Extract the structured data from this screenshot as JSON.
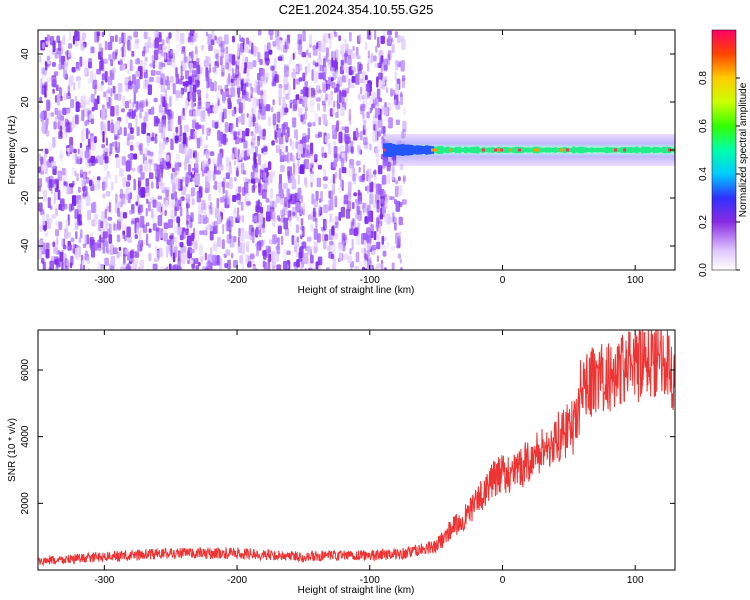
{
  "title": "C2E1.2024.354.10.55.G25",
  "chart_data": [
    {
      "type": "heatmap",
      "xlabel": "Height of straight line (km)",
      "ylabel": "Frequency (Hz)",
      "xlim": [
        -350,
        130
      ],
      "ylim": [
        -50,
        50
      ],
      "xticks": [
        -300,
        -200,
        -100,
        0,
        100
      ],
      "yticks": [
        -40,
        -20,
        0,
        20,
        40
      ],
      "colorbar": {
        "label": "Normalized spectral amplitude",
        "range": [
          0,
          1
        ],
        "ticks": [
          "0.0",
          "0.2",
          "0.4",
          "0.6",
          "0.8"
        ]
      },
      "regions": [
        {
          "x_range": [
            -350,
            -90
          ],
          "description": "broadband noise across all frequencies, amplitude ~0.1-0.2"
        },
        {
          "x_range": [
            -90,
            130
          ],
          "center_frequency": 0,
          "description": "narrow signal band centered near 0 Hz, amplitude 0.4-1.0"
        }
      ]
    },
    {
      "type": "line",
      "xlabel": "Height of straight line (km)",
      "ylabel": "SNR (10 * v/v)",
      "xlim": [
        -350,
        130
      ],
      "ylim": [
        0,
        7200
      ],
      "xticks": [
        -300,
        -200,
        -100,
        0,
        100
      ],
      "yticks": [
        2000,
        4000,
        6000
      ],
      "color": "#ee3333",
      "series": [
        {
          "x": [
            -350,
            -300,
            -250,
            -200,
            -150,
            -100,
            -75,
            -50,
            -40,
            -30,
            -20,
            -10,
            0,
            10,
            20,
            30,
            40,
            50,
            55,
            60,
            70,
            80,
            90,
            100,
            110,
            120,
            125,
            130
          ],
          "y": [
            250,
            400,
            500,
            500,
            400,
            450,
            500,
            700,
            1200,
            1500,
            2000,
            2600,
            2900,
            2900,
            3300,
            3600,
            3900,
            4200,
            4300,
            5600,
            5700,
            5800,
            6000,
            6100,
            6300,
            6500,
            6400,
            5500
          ]
        }
      ]
    }
  ]
}
